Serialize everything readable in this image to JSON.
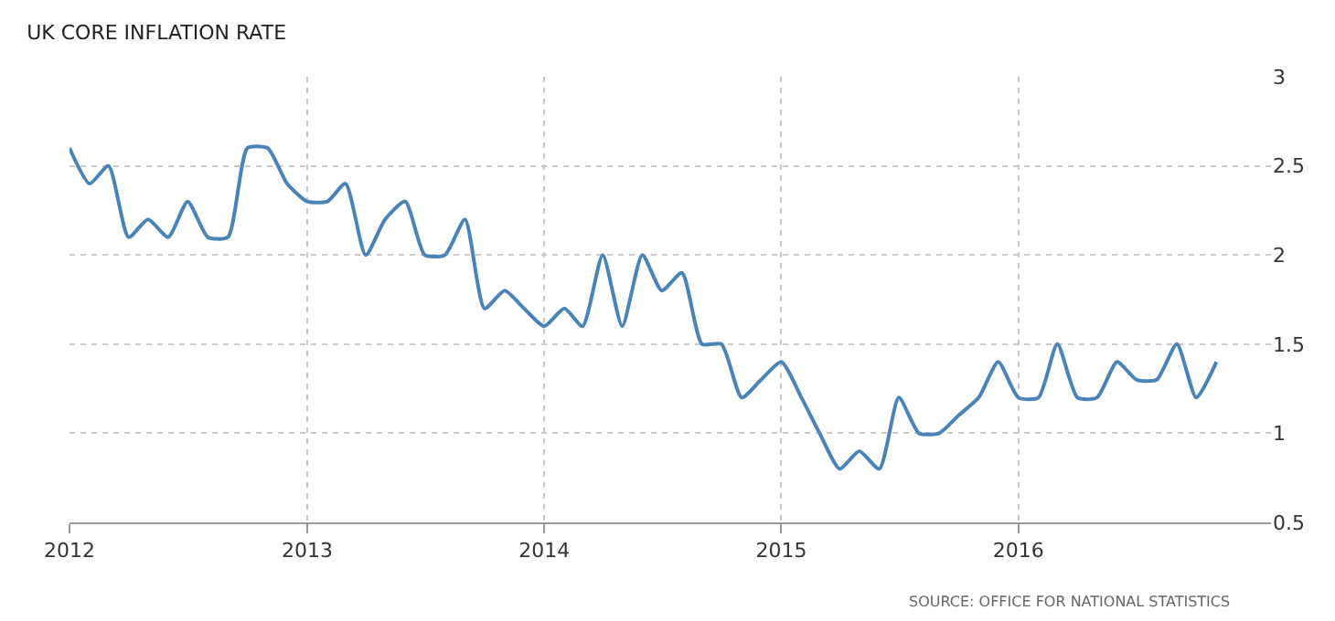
{
  "chart_data": {
    "type": "line",
    "title": "UK CORE INFLATION RATE",
    "x": [
      "2012-01",
      "2012-02",
      "2012-03",
      "2012-04",
      "2012-05",
      "2012-06",
      "2012-07",
      "2012-08",
      "2012-09",
      "2012-10",
      "2012-11",
      "2012-12",
      "2013-01",
      "2013-02",
      "2013-03",
      "2013-04",
      "2013-05",
      "2013-06",
      "2013-07",
      "2013-08",
      "2013-09",
      "2013-10",
      "2013-11",
      "2013-12",
      "2014-01",
      "2014-02",
      "2014-03",
      "2014-04",
      "2014-05",
      "2014-06",
      "2014-07",
      "2014-08",
      "2014-09",
      "2014-10",
      "2014-11",
      "2014-12",
      "2015-01",
      "2015-02",
      "2015-03",
      "2015-04",
      "2015-05",
      "2015-06",
      "2015-07",
      "2015-08",
      "2015-09",
      "2015-10",
      "2015-11",
      "2015-12",
      "2016-01",
      "2016-02",
      "2016-03",
      "2016-04",
      "2016-05",
      "2016-06",
      "2016-07",
      "2016-08",
      "2016-09",
      "2016-10",
      "2016-11"
    ],
    "series": [
      {
        "color": "#4a83b8",
        "values": [
          2.6,
          2.4,
          2.5,
          2.1,
          2.2,
          2.1,
          2.3,
          2.1,
          2.1,
          2.6,
          2.6,
          2.4,
          2.3,
          2.3,
          2.4,
          2.0,
          2.2,
          2.3,
          2.0,
          2.0,
          2.2,
          1.7,
          1.8,
          1.7,
          1.6,
          1.7,
          1.6,
          2.0,
          1.6,
          2.0,
          1.8,
          1.9,
          1.5,
          1.5,
          1.2,
          1.3,
          1.4,
          1.2,
          1.0,
          0.8,
          0.9,
          0.8,
          1.2,
          1.0,
          1.0,
          1.1,
          1.2,
          1.4,
          1.2,
          1.2,
          1.5,
          1.2,
          1.2,
          1.4,
          1.3,
          1.3,
          1.5,
          1.2,
          1.4
        ]
      }
    ],
    "xlim": [
      "2012-01-01",
      "2017-01-24"
    ],
    "xticks": [
      {
        "value": "2012-01-01",
        "label": "2012"
      },
      {
        "value": "2013-01-01",
        "label": "2013"
      },
      {
        "value": "2014-01-01",
        "label": "2014"
      },
      {
        "value": "2015-01-01",
        "label": "2015"
      },
      {
        "value": "2016-01-01",
        "label": "2016"
      }
    ],
    "ylim": [
      0.5,
      3
    ],
    "yticks": [
      0.5,
      1,
      1.5,
      2,
      2.5,
      3
    ],
    "grid": true,
    "line_style": "solid",
    "marker": "none",
    "annotations": [
      "SOURCE: OFFICE FOR NATIONAL STATISTICS"
    ]
  }
}
